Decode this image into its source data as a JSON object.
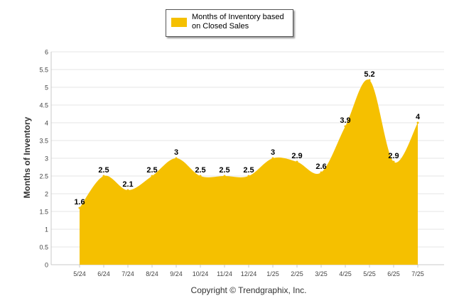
{
  "chart_data": {
    "type": "area",
    "categories": [
      "5/24",
      "6/24",
      "7/24",
      "8/24",
      "9/24",
      "10/24",
      "11/24",
      "12/24",
      "1/25",
      "2/25",
      "3/25",
      "4/25",
      "5/25",
      "6/25",
      "7/25"
    ],
    "series": [
      {
        "name": "Months of Inventory based on Closed Sales",
        "values": [
          1.6,
          2.5,
          2.1,
          2.5,
          3,
          2.5,
          2.5,
          2.5,
          3,
          2.9,
          2.6,
          3.9,
          5.2,
          2.9,
          4
        ]
      }
    ],
    "data_labels": [
      "1.6",
      "2.5",
      "2.1",
      "2.5",
      "3",
      "2.5",
      "2.5",
      "2.5",
      "3",
      "2.9",
      "2.6",
      "3.9",
      "5.2",
      "2.9",
      "4"
    ],
    "ylabel": "Months of Inventory",
    "xlabel": "",
    "ylim": [
      0,
      6
    ],
    "yticks": [
      "0",
      "0.5",
      "1",
      "1.5",
      "2",
      "2.5",
      "3",
      "3.5",
      "4",
      "4.5",
      "5",
      "5.5",
      "6"
    ],
    "yticks_values": [
      0,
      0.5,
      1,
      1.5,
      2,
      2.5,
      3,
      3.5,
      4,
      4.5,
      5,
      5.5,
      6
    ],
    "grid": true,
    "legend_position": "top-center",
    "color": "#F5C000"
  },
  "legend": {
    "label": "Months of Inventory based on Closed Sales"
  },
  "footer": {
    "copyright": "Copyright © Trendgraphix, Inc."
  }
}
